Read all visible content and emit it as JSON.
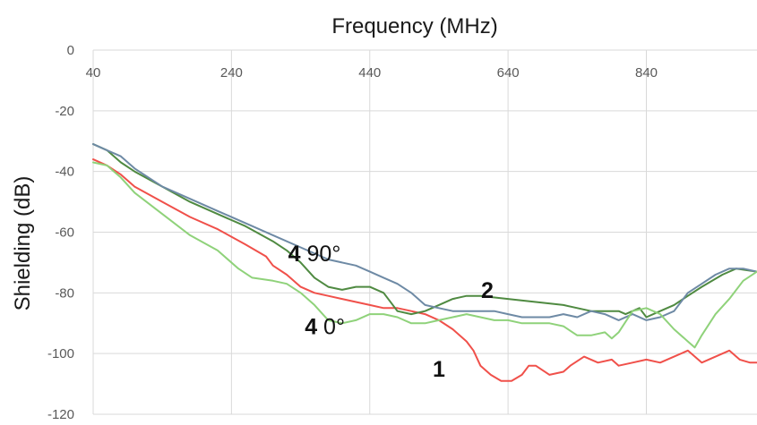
{
  "chart_data": {
    "type": "line",
    "title": "Frequency (MHz)",
    "xlabel": "Frequency (MHz)",
    "ylabel": "Shielding (dB)",
    "xlim": [
      40,
      1000
    ],
    "ylim": [
      -120,
      0
    ],
    "x_ticks": [
      40,
      240,
      440,
      640,
      840
    ],
    "y_ticks": [
      0,
      -20,
      -40,
      -60,
      -80,
      -100,
      -120
    ],
    "x_axis_position": "top",
    "grid": true,
    "legend": "none",
    "series": [
      {
        "tag_bold": "1",
        "tag_rest": "",
        "tag_x": 540,
        "tag_y": -105,
        "color": "#f0504a",
        "points": [
          [
            40,
            -36
          ],
          [
            60,
            -38
          ],
          [
            80,
            -41
          ],
          [
            100,
            -45
          ],
          [
            140,
            -50
          ],
          [
            180,
            -55
          ],
          [
            220,
            -59
          ],
          [
            260,
            -64
          ],
          [
            290,
            -68
          ],
          [
            300,
            -71
          ],
          [
            320,
            -74
          ],
          [
            340,
            -78
          ],
          [
            360,
            -80
          ],
          [
            380,
            -81
          ],
          [
            400,
            -82
          ],
          [
            420,
            -83
          ],
          [
            440,
            -84
          ],
          [
            460,
            -85
          ],
          [
            480,
            -85
          ],
          [
            500,
            -86
          ],
          [
            520,
            -87
          ],
          [
            540,
            -89
          ],
          [
            560,
            -92
          ],
          [
            580,
            -96
          ],
          [
            590,
            -99
          ],
          [
            600,
            -104
          ],
          [
            615,
            -107
          ],
          [
            630,
            -109
          ],
          [
            645,
            -109
          ],
          [
            660,
            -107
          ],
          [
            670,
            -104
          ],
          [
            680,
            -104
          ],
          [
            700,
            -107
          ],
          [
            720,
            -106
          ],
          [
            730,
            -104
          ],
          [
            750,
            -101
          ],
          [
            770,
            -103
          ],
          [
            790,
            -102
          ],
          [
            800,
            -104
          ],
          [
            820,
            -103
          ],
          [
            840,
            -102
          ],
          [
            860,
            -103
          ],
          [
            880,
            -101
          ],
          [
            900,
            -99
          ],
          [
            920,
            -103
          ],
          [
            940,
            -101
          ],
          [
            960,
            -99
          ],
          [
            975,
            -102
          ],
          [
            990,
            -103
          ],
          [
            1000,
            -103
          ]
        ]
      },
      {
        "tag_bold": "2",
        "tag_rest": "",
        "tag_x": 610,
        "tag_y": -79,
        "color": "#4f8a41",
        "points": [
          [
            40,
            -31
          ],
          [
            60,
            -33
          ],
          [
            80,
            -37
          ],
          [
            100,
            -40
          ],
          [
            140,
            -45
          ],
          [
            180,
            -50
          ],
          [
            220,
            -54
          ],
          [
            260,
            -58
          ],
          [
            300,
            -63
          ],
          [
            320,
            -66
          ],
          [
            340,
            -70
          ],
          [
            360,
            -75
          ],
          [
            380,
            -78
          ],
          [
            400,
            -79
          ],
          [
            420,
            -78
          ],
          [
            440,
            -78
          ],
          [
            460,
            -80
          ],
          [
            480,
            -86
          ],
          [
            500,
            -87
          ],
          [
            520,
            -86
          ],
          [
            540,
            -84
          ],
          [
            560,
            -82
          ],
          [
            580,
            -81
          ],
          [
            600,
            -81
          ],
          [
            640,
            -82
          ],
          [
            680,
            -83
          ],
          [
            720,
            -84
          ],
          [
            760,
            -86
          ],
          [
            800,
            -86
          ],
          [
            810,
            -87
          ],
          [
            830,
            -85
          ],
          [
            840,
            -88
          ],
          [
            860,
            -86
          ],
          [
            880,
            -84
          ],
          [
            900,
            -81
          ],
          [
            920,
            -78
          ],
          [
            950,
            -74
          ],
          [
            970,
            -72
          ],
          [
            1000,
            -73
          ]
        ]
      },
      {
        "tag_bold": "4",
        "tag_rest": " 90°",
        "tag_x": 360,
        "tag_y": -67,
        "color": "#6e8aa5",
        "points": [
          [
            40,
            -31
          ],
          [
            60,
            -33
          ],
          [
            80,
            -35
          ],
          [
            100,
            -39
          ],
          [
            140,
            -45
          ],
          [
            180,
            -49
          ],
          [
            220,
            -53
          ],
          [
            260,
            -57
          ],
          [
            300,
            -61
          ],
          [
            340,
            -65
          ],
          [
            380,
            -69
          ],
          [
            420,
            -71
          ],
          [
            440,
            -73
          ],
          [
            460,
            -75
          ],
          [
            480,
            -77
          ],
          [
            500,
            -80
          ],
          [
            520,
            -84
          ],
          [
            540,
            -85
          ],
          [
            560,
            -86
          ],
          [
            580,
            -86
          ],
          [
            600,
            -86
          ],
          [
            620,
            -86
          ],
          [
            640,
            -87
          ],
          [
            660,
            -88
          ],
          [
            680,
            -88
          ],
          [
            700,
            -88
          ],
          [
            720,
            -87
          ],
          [
            740,
            -88
          ],
          [
            760,
            -86
          ],
          [
            780,
            -87
          ],
          [
            800,
            -89
          ],
          [
            820,
            -87
          ],
          [
            840,
            -89
          ],
          [
            860,
            -88
          ],
          [
            880,
            -86
          ],
          [
            900,
            -80
          ],
          [
            920,
            -77
          ],
          [
            940,
            -74
          ],
          [
            960,
            -72
          ],
          [
            980,
            -72
          ],
          [
            1000,
            -73
          ]
        ]
      },
      {
        "tag_bold": "4",
        "tag_rest": " 0°",
        "tag_x": 375,
        "tag_y": -91,
        "color": "#8fd27a",
        "points": [
          [
            40,
            -37
          ],
          [
            60,
            -38
          ],
          [
            80,
            -42
          ],
          [
            100,
            -47
          ],
          [
            140,
            -54
          ],
          [
            180,
            -61
          ],
          [
            220,
            -66
          ],
          [
            250,
            -72
          ],
          [
            270,
            -75
          ],
          [
            300,
            -76
          ],
          [
            320,
            -77
          ],
          [
            340,
            -80
          ],
          [
            360,
            -84
          ],
          [
            380,
            -89
          ],
          [
            400,
            -90
          ],
          [
            420,
            -89
          ],
          [
            440,
            -87
          ],
          [
            460,
            -87
          ],
          [
            480,
            -88
          ],
          [
            500,
            -90
          ],
          [
            520,
            -90
          ],
          [
            540,
            -89
          ],
          [
            560,
            -88
          ],
          [
            580,
            -87
          ],
          [
            600,
            -88
          ],
          [
            620,
            -89
          ],
          [
            640,
            -89
          ],
          [
            660,
            -90
          ],
          [
            680,
            -90
          ],
          [
            700,
            -90
          ],
          [
            720,
            -91
          ],
          [
            740,
            -94
          ],
          [
            760,
            -94
          ],
          [
            780,
            -93
          ],
          [
            790,
            -95
          ],
          [
            800,
            -93
          ],
          [
            820,
            -86
          ],
          [
            840,
            -85
          ],
          [
            860,
            -87
          ],
          [
            880,
            -92
          ],
          [
            900,
            -96
          ],
          [
            910,
            -98
          ],
          [
            920,
            -94
          ],
          [
            940,
            -87
          ],
          [
            960,
            -82
          ],
          [
            980,
            -76
          ],
          [
            1000,
            -73
          ]
        ]
      }
    ]
  }
}
